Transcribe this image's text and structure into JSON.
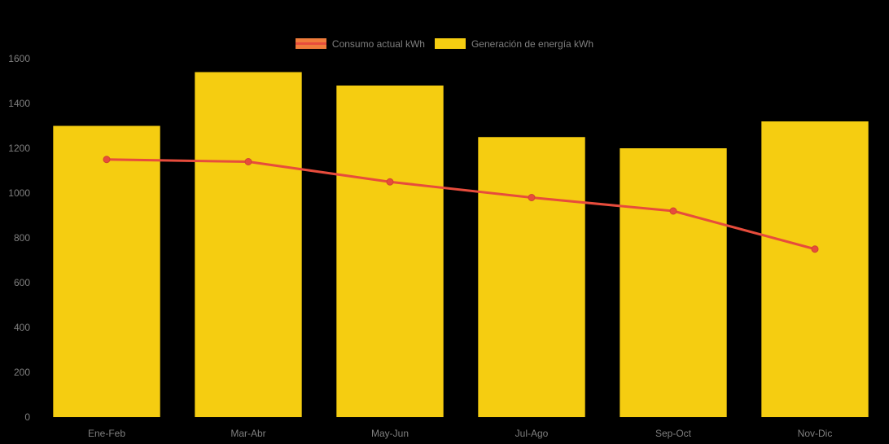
{
  "legend": {
    "text_color": "#7f7f7f",
    "items": [
      {
        "label": "Consumo actual kWh",
        "type": "line",
        "marker_fill": "#ef7c3b",
        "marker_stroke": "#e74c3c"
      },
      {
        "label": "Generación de energía kWh",
        "type": "bar",
        "marker_fill": "#f5cd11",
        "marker_stroke": "#f5cd11"
      }
    ]
  },
  "chart_data": {
    "type": "bar+line",
    "categories": [
      "Ene-Feb",
      "Mar-Abr",
      "May-Jun",
      "Jul-Ago",
      "Sep-Oct",
      "Nov-Dic"
    ],
    "series": [
      {
        "name": "Generación de energía kWh",
        "type": "bar",
        "color": "#f5cd11",
        "values": [
          1300,
          1540,
          1480,
          1250,
          1200,
          1320
        ]
      },
      {
        "name": "Consumo actual kWh",
        "type": "line",
        "color": "#e74c3c",
        "point_color": "#e74c3c",
        "point_stroke": "#d0452f",
        "values": [
          1150,
          1140,
          1050,
          980,
          920,
          750
        ]
      }
    ],
    "title": "",
    "xlabel": "",
    "ylabel": "",
    "ylim": [
      0,
      1600
    ],
    "yticks": [
      0,
      200,
      400,
      600,
      800,
      1000,
      1200,
      1400,
      1600
    ],
    "grid": false,
    "legend_position": "top",
    "axis_text_color": "#7f7f7f",
    "background": "#000000"
  }
}
